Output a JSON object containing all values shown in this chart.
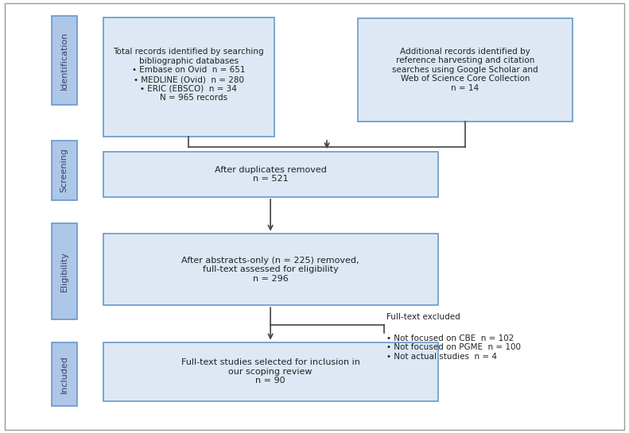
{
  "background_color": "#ffffff",
  "border_color": "#999999",
  "box_fill": "#dde8f4",
  "box_edge": "#6699cc",
  "label_fill": "#aec6e8",
  "label_edge": "#6699cc",
  "label_text_color": "#334466",
  "arrow_color": "#444444",
  "text_color": "#222222",
  "labels": {
    "identification": "Identification",
    "screening": "Screening",
    "eligibility": "Eligibility",
    "included": "Included"
  },
  "box1_text": "Total records identified by searching\nbibliographic databases\n• Embase on Ovid  n = 651\n• MEDLINE (Ovid)  n = 280\n• ERIC (EBSCO)  n = 34\n    N = 965 records",
  "box2_text": "Additional records identified by\nreference harvesting and citation\nsearches using Google Scholar and\nWeb of Science Core Collection\nn = 14",
  "box3_text": "After duplicates removed\nn = 521",
  "box4_text": "After abstracts-only (n = 225) removed,\nfull-text assessed for eligibility\nn = 296",
  "box5_text": "Full-text studies selected for inclusion in\nour scoping review\nn = 90",
  "excluded_title": "Full-text excluded",
  "excluded_bullets": "• Not focused on CBE  n = 102\n• Not focused on PGME  n = 100\n• Not actual studies  n = 4"
}
